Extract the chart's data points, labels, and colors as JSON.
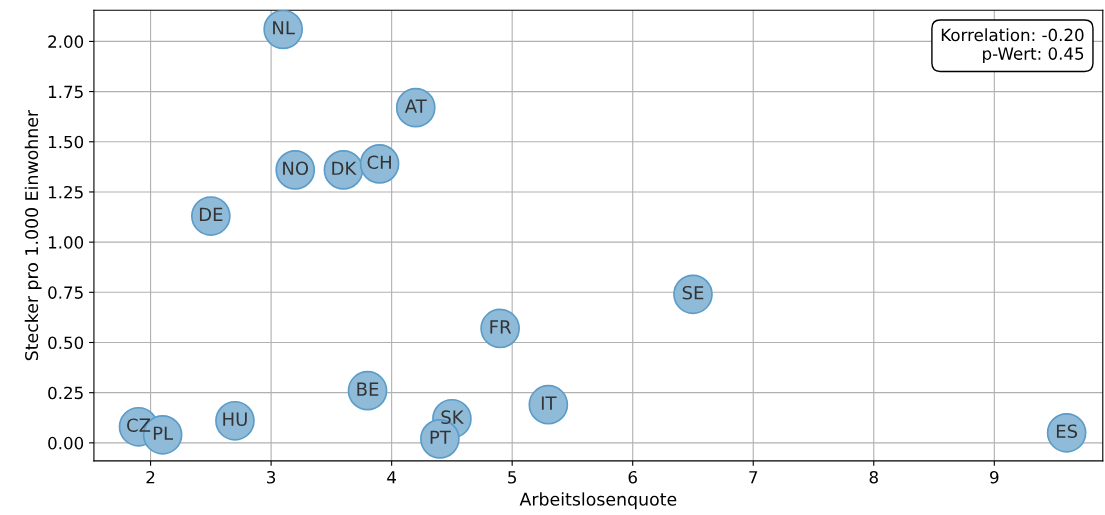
{
  "chart_data": {
    "type": "scatter",
    "xlabel": "Arbeitslosenquote",
    "ylabel": "Stecker pro 1.000 Einwohner",
    "x": [
      3.1,
      4.2,
      3.2,
      3.6,
      3.9,
      2.5,
      6.5,
      4.9,
      3.8,
      5.3,
      4.5,
      2.7,
      1.9,
      2.1,
      4.4,
      9.6
    ],
    "series": [
      {
        "color": "#8fbbd9",
        "values": [
          2.06,
          1.67,
          1.36,
          1.36,
          1.39,
          1.13,
          0.74,
          0.57,
          0.26,
          0.19,
          0.12,
          0.11,
          0.08,
          0.04,
          0.02,
          0.05
        ]
      }
    ],
    "annotations": [
      {
        "text": "NL",
        "x": 3.1,
        "y": 2.06
      },
      {
        "text": "AT",
        "x": 4.2,
        "y": 1.67
      },
      {
        "text": "NO",
        "x": 3.2,
        "y": 1.36
      },
      {
        "text": "DK",
        "x": 3.6,
        "y": 1.36
      },
      {
        "text": "CH",
        "x": 3.9,
        "y": 1.39
      },
      {
        "text": "DE",
        "x": 2.5,
        "y": 1.13
      },
      {
        "text": "SE",
        "x": 6.5,
        "y": 0.74
      },
      {
        "text": "FR",
        "x": 4.9,
        "y": 0.57
      },
      {
        "text": "BE",
        "x": 3.8,
        "y": 0.26
      },
      {
        "text": "IT",
        "x": 5.3,
        "y": 0.19
      },
      {
        "text": "SK",
        "x": 4.5,
        "y": 0.12
      },
      {
        "text": "HU",
        "x": 2.7,
        "y": 0.11
      },
      {
        "text": "CZ",
        "x": 1.9,
        "y": 0.08
      },
      {
        "text": "PL",
        "x": 2.1,
        "y": 0.04
      },
      {
        "text": "PT",
        "x": 4.4,
        "y": 0.02
      },
      {
        "text": "ES",
        "x": 9.6,
        "y": 0.05
      },
      "Korrelation: -0.20\np-Wert: 0.45"
    ],
    "xlim": [
      1.53,
      9.9
    ],
    "ylim": [
      -0.09,
      2.155
    ],
    "xticks": [
      2,
      3,
      4,
      5,
      6,
      7,
      8,
      9
    ],
    "yticks": [
      {
        "value": 0,
        "label": "0.00"
      },
      {
        "value": 0.25,
        "label": "0.25"
      },
      {
        "value": 0.5,
        "label": "0.50"
      },
      {
        "value": 0.75,
        "label": "0.75"
      },
      {
        "value": 1,
        "label": "1.00"
      },
      {
        "value": 1.25,
        "label": "1.25"
      },
      {
        "value": 1.5,
        "label": "1.50"
      },
      {
        "value": 1.75,
        "label": "1.75"
      },
      {
        "value": 2,
        "label": "2.00"
      }
    ],
    "grid": true,
    "marker": "circle"
  }
}
